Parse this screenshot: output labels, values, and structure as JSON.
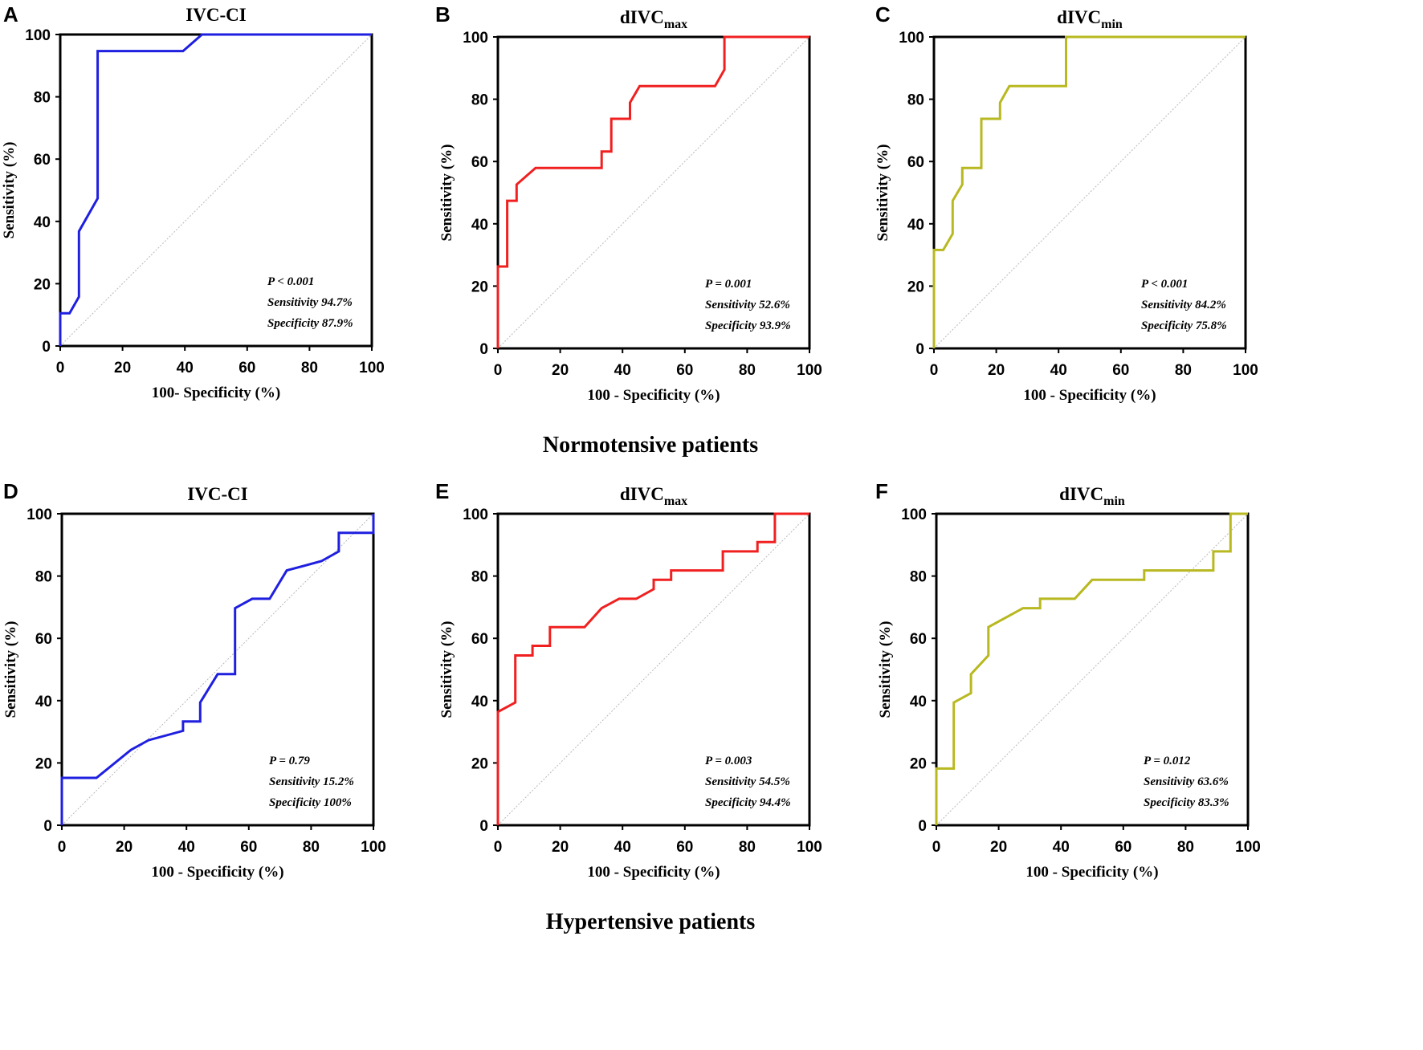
{
  "groups": [
    {
      "label": "Normotensive patients"
    },
    {
      "label": "Hypertensive patients"
    }
  ],
  "colors": {
    "IVC-CI": "#1f1fe0",
    "dIVCmax": "#f02020",
    "dIVCmin": "#b8b820"
  },
  "chart_data": [
    {
      "type": "line",
      "panel": "A",
      "group": "Normotensive patients",
      "title": "IVC-CI",
      "title_main": "IVC-CI",
      "title_sub": "",
      "xlabel": "100- Specificity (%)",
      "ylabel": "Sensitivity (%)",
      "xlim": [
        0,
        100
      ],
      "ylim": [
        0,
        100
      ],
      "xticks": [
        "0",
        "20",
        "40",
        "60",
        "80",
        "100"
      ],
      "yticks": [
        "0",
        "20",
        "40",
        "60",
        "80",
        "100"
      ],
      "reference_line": "diagonal",
      "series": [
        {
          "name": "IVC-CI",
          "color": "#1f1fe0",
          "x": [
            0,
            0,
            3,
            6,
            6,
            12,
            12,
            39.4,
            45.5,
            100
          ],
          "y": [
            0,
            10.5,
            10.5,
            15.8,
            36.8,
            47.4,
            94.7,
            94.7,
            100,
            100
          ]
        }
      ],
      "annotations": {
        "p": "P < 0.001",
        "sensitivity": "Sensitivity 94.7%",
        "specificity": "Specificity 87.9%"
      }
    },
    {
      "type": "line",
      "panel": "B",
      "group": "Normotensive patients",
      "title": "dIVCmax",
      "title_main": "dIVC",
      "title_sub": "max",
      "xlabel": "100 - Specificity (%)",
      "ylabel": "Sensitivity (%)",
      "xlim": [
        0,
        100
      ],
      "ylim": [
        0,
        100
      ],
      "xticks": [
        "0",
        "20",
        "40",
        "60",
        "80",
        "100"
      ],
      "yticks": [
        "0",
        "20",
        "40",
        "60",
        "80",
        "100"
      ],
      "reference_line": "diagonal",
      "series": [
        {
          "name": "dIVCmax",
          "color": "#f02020",
          "x": [
            0,
            0,
            3,
            3,
            6,
            6,
            12.1,
            33.3,
            33.3,
            36.4,
            36.4,
            42.4,
            42.4,
            45.5,
            69.7,
            72.7,
            72.7,
            100
          ],
          "y": [
            0,
            26.3,
            26.3,
            47.4,
            47.4,
            52.6,
            57.9,
            57.9,
            63.2,
            63.2,
            73.7,
            73.7,
            78.9,
            84.2,
            84.2,
            89.5,
            100,
            100
          ]
        }
      ],
      "annotations": {
        "p": "P = 0.001",
        "sensitivity": "Sensitivity 52.6%",
        "specificity": "Specificity 93.9%"
      }
    },
    {
      "type": "line",
      "panel": "C",
      "group": "Normotensive patients",
      "title": "dIVCmin",
      "title_main": "dIVC",
      "title_sub": "min",
      "xlabel": "100 - Specificity (%)",
      "ylabel": "Sensitivity (%)",
      "xlim": [
        0,
        100
      ],
      "ylim": [
        0,
        100
      ],
      "xticks": [
        "0",
        "20",
        "40",
        "60",
        "80",
        "100"
      ],
      "yticks": [
        "0",
        "20",
        "40",
        "60",
        "80",
        "100"
      ],
      "reference_line": "diagonal",
      "series": [
        {
          "name": "dIVCmin",
          "color": "#b8b820",
          "x": [
            0,
            0,
            3,
            6,
            6,
            9.1,
            9.1,
            15.2,
            15.2,
            21.2,
            21.2,
            24.2,
            42.4,
            42.4,
            100
          ],
          "y": [
            0,
            31.6,
            31.6,
            36.8,
            47.4,
            52.6,
            57.9,
            57.9,
            73.7,
            73.7,
            78.9,
            84.2,
            84.2,
            100,
            100
          ]
        }
      ],
      "annotations": {
        "p": "P < 0.001",
        "sensitivity": "Sensitivity 84.2%",
        "specificity": "Specificity 75.8%"
      }
    },
    {
      "type": "line",
      "panel": "D",
      "group": "Hypertensive patients",
      "title": "IVC-CI",
      "title_main": "IVC-CI",
      "title_sub": "",
      "xlabel": "100 - Specificity (%)",
      "ylabel": "Sensitivity (%)",
      "xlim": [
        0,
        100
      ],
      "ylim": [
        0,
        100
      ],
      "xticks": [
        "0",
        "20",
        "40",
        "60",
        "80",
        "100"
      ],
      "yticks": [
        "0",
        "20",
        "40",
        "60",
        "80",
        "100"
      ],
      "reference_line": "diagonal",
      "series": [
        {
          "name": "IVC-CI",
          "color": "#1f1fe0",
          "x": [
            0,
            0,
            11.1,
            22.2,
            27.8,
            38.9,
            38.9,
            44.4,
            44.4,
            50,
            55.6,
            55.6,
            61.1,
            66.7,
            72.2,
            83.3,
            88.9,
            88.9,
            100,
            100
          ],
          "y": [
            0,
            15.2,
            15.2,
            24.2,
            27.3,
            30.3,
            33.3,
            33.3,
            39.4,
            48.5,
            48.5,
            69.7,
            72.7,
            72.7,
            81.8,
            84.8,
            87.9,
            93.9,
            93.9,
            100
          ]
        }
      ],
      "annotations": {
        "p": "P = 0.79",
        "sensitivity": "Sensitivity 15.2%",
        "specificity": "Specificity 100%"
      }
    },
    {
      "type": "line",
      "panel": "E",
      "group": "Hypertensive patients",
      "title": "dIVCmax",
      "title_main": "dIVC",
      "title_sub": "max",
      "xlabel": "100 - Specificity (%)",
      "ylabel": "Sensitivity (%)",
      "xlim": [
        0,
        100
      ],
      "ylim": [
        0,
        100
      ],
      "xticks": [
        "0",
        "20",
        "40",
        "60",
        "80",
        "100"
      ],
      "yticks": [
        "0",
        "20",
        "40",
        "60",
        "80",
        "100"
      ],
      "reference_line": "diagonal",
      "series": [
        {
          "name": "dIVCmax",
          "color": "#f02020",
          "x": [
            0,
            0,
            5.6,
            5.6,
            11.1,
            11.1,
            16.7,
            16.7,
            27.8,
            33.3,
            38.9,
            44.4,
            50,
            50,
            55.6,
            55.6,
            72.2,
            72.2,
            83.3,
            83.3,
            88.9,
            88.9,
            100
          ],
          "y": [
            0,
            36.4,
            39.4,
            54.5,
            54.5,
            57.6,
            57.6,
            63.6,
            63.6,
            69.7,
            72.7,
            72.7,
            75.8,
            78.8,
            78.8,
            81.8,
            81.8,
            87.9,
            87.9,
            90.9,
            90.9,
            100,
            100
          ]
        }
      ],
      "annotations": {
        "p": "P = 0.003",
        "sensitivity": "Sensitivity 54.5%",
        "specificity": "Specificity 94.4%"
      }
    },
    {
      "type": "line",
      "panel": "F",
      "group": "Hypertensive patients",
      "title": "dIVCmin",
      "title_main": "dIVC",
      "title_sub": "min",
      "xlabel": "100 - Specificity (%)",
      "ylabel": "Sensitivity (%)",
      "xlim": [
        0,
        100
      ],
      "ylim": [
        0,
        100
      ],
      "xticks": [
        "0",
        "20",
        "40",
        "60",
        "80",
        "100"
      ],
      "yticks": [
        "0",
        "20",
        "40",
        "60",
        "80",
        "100"
      ],
      "reference_line": "diagonal",
      "series": [
        {
          "name": "dIVCmin",
          "color": "#b8b820",
          "x": [
            0,
            0,
            5.6,
            5.6,
            11.1,
            11.1,
            16.7,
            16.7,
            27.8,
            33.3,
            33.3,
            44.4,
            50,
            66.7,
            66.7,
            88.9,
            88.9,
            94.4,
            94.4,
            100
          ],
          "y": [
            0,
            18.2,
            18.2,
            39.4,
            42.4,
            48.5,
            54.5,
            63.6,
            69.7,
            69.7,
            72.7,
            72.7,
            78.8,
            78.8,
            81.8,
            81.8,
            87.9,
            87.9,
            100,
            100
          ]
        }
      ],
      "annotations": {
        "p": "P = 0.012",
        "sensitivity": "Sensitivity 63.6%",
        "specificity": "Specificity 83.3%"
      }
    }
  ]
}
